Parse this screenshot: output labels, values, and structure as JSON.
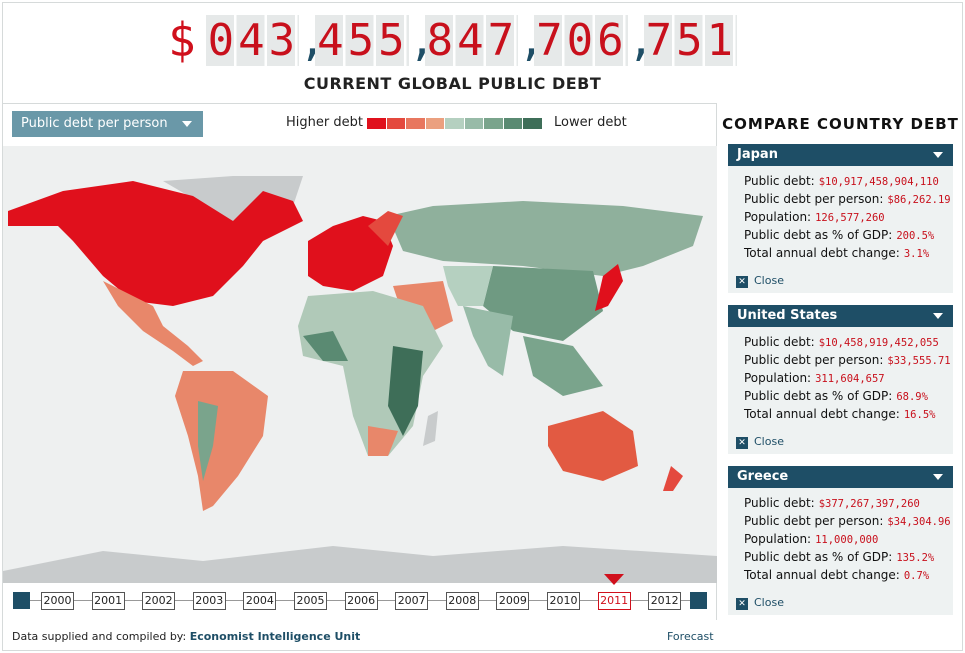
{
  "header": {
    "currency": "$",
    "groups": [
      "043",
      "455",
      "847",
      "706",
      "751"
    ],
    "separator": ",",
    "title": "CURRENT GLOBAL PUBLIC DEBT"
  },
  "toolbar": {
    "dropdown": "Public debt per person",
    "legend_high": "Higher debt",
    "legend_low": "Lower debt",
    "legend_colors": [
      "#e0101c",
      "#e4493e",
      "#e8775f",
      "#eba07f",
      "#b5d0c0",
      "#98bba8",
      "#7aa48c",
      "#5a8a72",
      "#3e6e58"
    ]
  },
  "timeline": {
    "years": [
      "2000",
      "2001",
      "2002",
      "2003",
      "2004",
      "2005",
      "2006",
      "2007",
      "2008",
      "2009",
      "2010",
      "2011",
      "2012"
    ],
    "selected": "2011",
    "forecast": "Forecast"
  },
  "footer": {
    "prefix": "Data supplied and compiled by:",
    "source": "Economist Intelligence Unit"
  },
  "sidebar": {
    "title": "COMPARE COUNTRY DEBT",
    "close": "Close",
    "field_labels": [
      "Public debt:",
      "Public debt per person:",
      "Population:",
      "Public debt as % of GDP:",
      "Total annual debt change:"
    ],
    "countries": [
      {
        "name": "Japan",
        "values": [
          "$10,917,458,904,110",
          "$86,262.19",
          "126,577,260",
          "200.5%",
          "3.1%"
        ]
      },
      {
        "name": "United States",
        "values": [
          "$10,458,919,452,055",
          "$33,555.71",
          "311,604,657",
          "68.9%",
          "16.5%"
        ]
      },
      {
        "name": "Greece",
        "values": [
          "$377,267,397,260",
          "$34,304.96",
          "11,000,000",
          "135.2%",
          "0.7%"
        ]
      }
    ]
  }
}
